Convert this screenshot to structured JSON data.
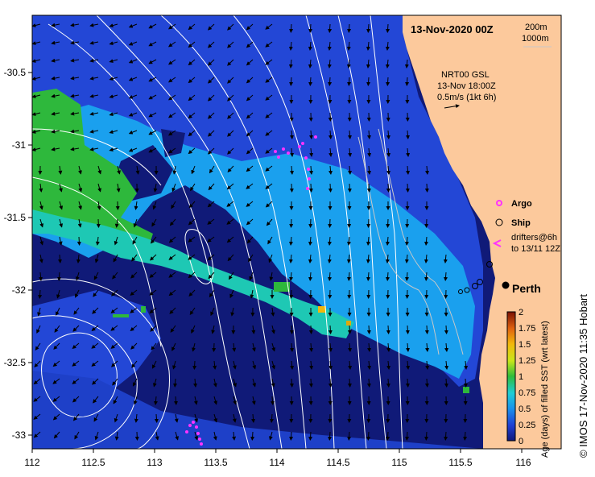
{
  "title": "13-Nov-2020 00Z",
  "depth_legend": {
    "line1": "200m",
    "line2": "1000m"
  },
  "current_info": {
    "line1": "NRT00 GSL",
    "line2": "13-Nov 18:00Z",
    "line3": "0.5m/s (1kt 6h)"
  },
  "x_ticks": [
    "112",
    "112.5",
    "113",
    "113.5",
    "114",
    "114.5",
    "115",
    "115.5",
    "116"
  ],
  "y_ticks": [
    "-30.5",
    "-31",
    "-31.5",
    "-32",
    "-32.5",
    "-33"
  ],
  "legend": {
    "argo": "Argo",
    "ship": "Ship",
    "drifters_line1": "drifters@6h",
    "drifters_line2": "to 13/11 12Z"
  },
  "city": "Perth",
  "colorbar": {
    "ticks": [
      "2",
      "1.75",
      "1.5",
      "1.25",
      "1",
      "0.75",
      "0.5",
      "0.25",
      "0"
    ],
    "label": "Age (days) of filled SST (wrt latest)"
  },
  "credit": "© IMOS 17-Nov-2020 11:35 Hobart",
  "colors": {
    "land": "#fcc99c",
    "deep_navy": "#101a78",
    "mid_blue": "#2244d6",
    "light_blue": "#1aa0ee",
    "teal": "#1ec8b4",
    "green": "#2eb83c",
    "argo": "#ff33ff",
    "drifter": "#ff33ff"
  }
}
